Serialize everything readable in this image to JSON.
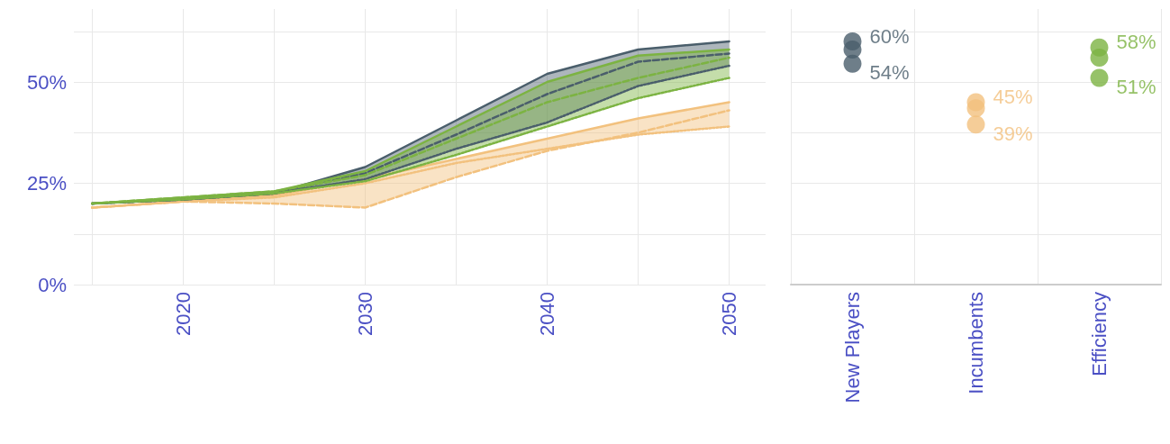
{
  "chart_data": [
    {
      "type": "line",
      "x": [
        2015,
        2020,
        2025,
        2030,
        2035,
        2040,
        2045,
        2050
      ],
      "xlim": [
        2014,
        2052
      ],
      "xticks": [
        {
          "value": 2015,
          "label": null
        },
        2020,
        {
          "value": 2025,
          "label": null
        },
        2030,
        {
          "value": 2035,
          "label": null
        },
        2040,
        {
          "value": 2045,
          "label": null
        },
        2050
      ],
      "ylim": [
        0,
        68
      ],
      "yticks": [
        {
          "value": 0,
          "label": "0%"
        },
        {
          "value": 12.5,
          "label": null
        },
        {
          "value": 25,
          "label": "25%"
        },
        {
          "value": 37.5,
          "label": null
        },
        {
          "value": 50,
          "label": "50%"
        },
        {
          "value": 62.5,
          "label": null
        }
      ],
      "grid": true,
      "series": [
        {
          "color": "#f2c17e",
          "line_style": "dashed",
          "values": [
            19,
            20.5,
            20,
            19,
            26.5,
            33,
            37.5,
            43
          ],
          "lower": [
            19,
            20.5,
            20,
            19,
            26.5,
            33,
            37,
            39
          ],
          "upper": [
            19,
            20.5,
            22,
            26,
            31,
            36,
            41,
            45
          ]
        },
        {
          "color": "#f2c17e",
          "line_style": "solid",
          "values": [
            19,
            20.5,
            22,
            26,
            31,
            36,
            41,
            45
          ]
        },
        {
          "color": "#f2c17e",
          "line_style": "dotted",
          "values": [
            19,
            20.5,
            21.5,
            25,
            30,
            33.5,
            37,
            39
          ]
        },
        {
          "color": "#4a5e6b",
          "line_style": "dashed",
          "values": [
            20,
            21,
            22.5,
            27.5,
            37,
            47,
            55,
            57
          ],
          "lower": [
            20,
            21,
            22.5,
            26,
            33.5,
            40,
            49,
            54
          ],
          "upper": [
            20,
            21,
            22.5,
            29,
            40.5,
            52,
            58,
            60
          ]
        },
        {
          "color": "#4a5e6b",
          "line_style": "solid",
          "values": [
            20,
            21,
            22.5,
            29,
            40.5,
            52,
            58,
            60
          ]
        },
        {
          "color": "#4a5e6b",
          "line_style": "dotted",
          "values": [
            20,
            21,
            22.5,
            26,
            33.5,
            40,
            49,
            54
          ]
        },
        {
          "color": "#7cb342",
          "line_style": "dashed",
          "values": [
            20,
            21.5,
            23,
            27,
            36,
            45,
            51,
            56
          ],
          "lower": [
            20,
            21,
            22.5,
            25.5,
            32,
            39,
            46,
            51
          ],
          "upper": [
            20,
            21.5,
            23,
            28,
            39,
            50,
            56.5,
            58
          ]
        },
        {
          "color": "#7cb342",
          "line_style": "solid",
          "values": [
            20,
            21.5,
            23,
            28,
            39,
            50,
            56.5,
            58
          ]
        },
        {
          "color": "#7cb342",
          "line_style": "dotted",
          "values": [
            20,
            21,
            22.5,
            25.5,
            32,
            39,
            46,
            51
          ]
        }
      ]
    },
    {
      "type": "scatter",
      "categories": [
        "New Players",
        "Incumbents",
        "Efficiency"
      ],
      "ylim": [
        0,
        68
      ],
      "yticks": [
        0,
        12.5,
        25,
        37.5,
        50,
        62.5
      ],
      "tick_labels": "x",
      "grid": true,
      "marker": "circle",
      "series": [
        {
          "colors": [
            "#4a5e6b",
            "#f2c17e",
            "#7cb342"
          ],
          "values": [
            60,
            45,
            58.5
          ],
          "value_labels": [
            "60%",
            "45%",
            "58%"
          ]
        },
        {
          "colors": [
            "#4a5e6b",
            "#f2c17e",
            "#7cb342"
          ],
          "values": [
            58,
            43.5,
            56
          ]
        },
        {
          "colors": [
            "#4a5e6b",
            "#f2c17e",
            "#7cb342"
          ],
          "values": [
            54.5,
            39.5,
            51
          ],
          "value_labels": [
            "54%",
            "39%",
            "51%"
          ]
        }
      ]
    }
  ]
}
